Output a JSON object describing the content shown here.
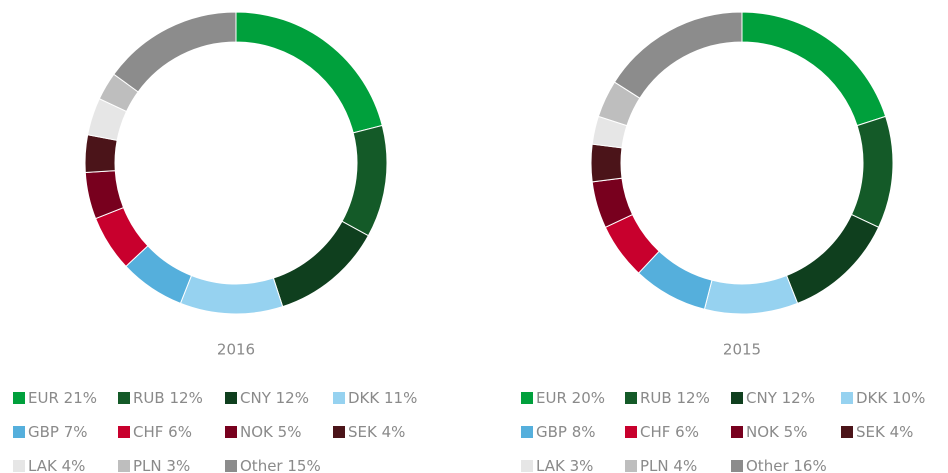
{
  "chart_data": [
    {
      "type": "pie",
      "title": "2016",
      "categories": [
        "EUR",
        "RUB",
        "CNY",
        "DKK",
        "GBP",
        "CHF",
        "NOK",
        "SEK",
        "LAK",
        "PLN",
        "Other"
      ],
      "values": [
        21,
        12,
        12,
        11,
        7,
        6,
        5,
        4,
        4,
        3,
        15
      ],
      "value_labels": [
        "21%",
        "12%",
        "12%",
        "11%",
        "7%",
        "6%",
        "5%",
        "4%",
        "4%",
        "3%",
        "15%"
      ],
      "colors": [
        "#00a03c",
        "#145a28",
        "#0f3f1e",
        "#96d2f0",
        "#55afdc",
        "#c8002d",
        "#78001e",
        "#4b1419",
        "#e6e6e6",
        "#bebebe",
        "#8c8c8c"
      ]
    },
    {
      "type": "pie",
      "title": "2015",
      "categories": [
        "EUR",
        "RUB",
        "CNY",
        "DKK",
        "GBP",
        "CHF",
        "NOK",
        "SEK",
        "LAK",
        "PLN",
        "Other"
      ],
      "values": [
        20,
        12,
        12,
        10,
        8,
        6,
        5,
        4,
        3,
        4,
        16
      ],
      "value_labels": [
        "20%",
        "12%",
        "12%",
        "10%",
        "8%",
        "6%",
        "5%",
        "4%",
        "3%",
        "4%",
        "16%"
      ],
      "colors": [
        "#00a03c",
        "#145a28",
        "#0f3f1e",
        "#96d2f0",
        "#55afdc",
        "#c8002d",
        "#78001e",
        "#4b1419",
        "#e6e6e6",
        "#bebebe",
        "#8c8c8c"
      ]
    }
  ]
}
